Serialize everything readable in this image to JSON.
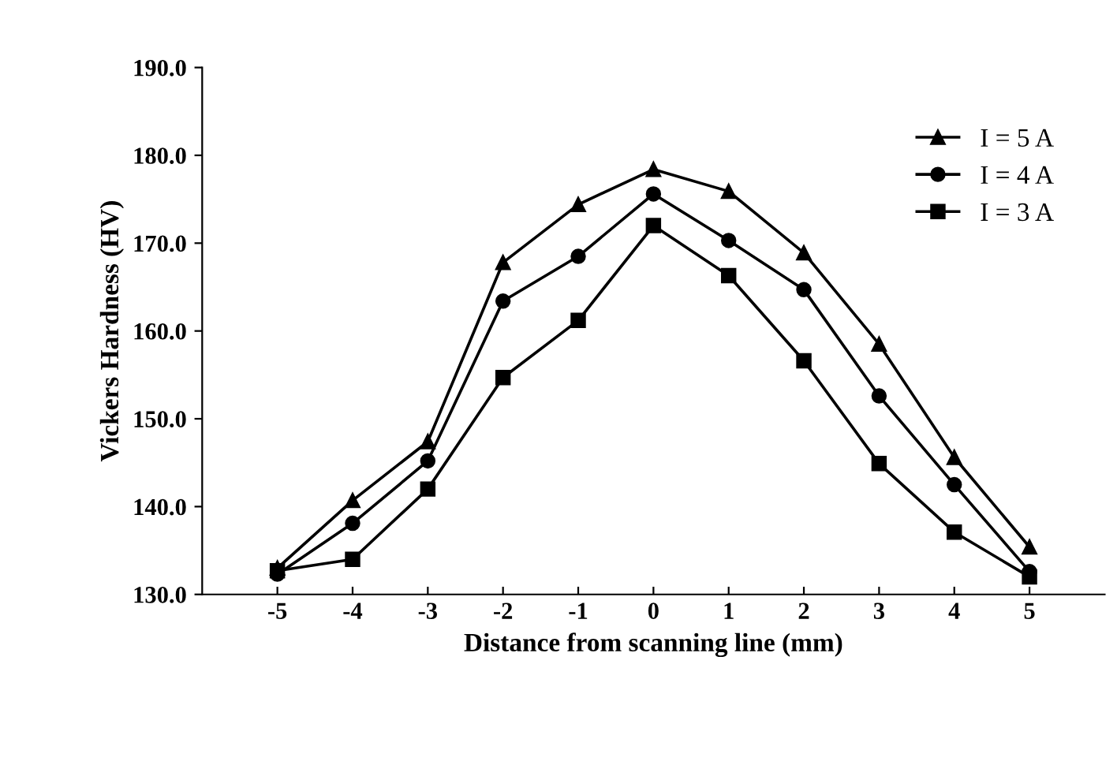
{
  "chart_data": {
    "type": "line",
    "xlabel": "Distance from scanning line (mm)",
    "ylabel": "Vickers Hardness (HV)",
    "x": [
      -5,
      -4,
      -3,
      -2,
      -1,
      0,
      1,
      2,
      3,
      4,
      5
    ],
    "series": [
      {
        "name": "I = 5 A",
        "color": "#000000",
        "marker": "triangle",
        "values": [
          133.0,
          140.7,
          147.4,
          167.8,
          174.4,
          178.4,
          175.9,
          168.9,
          158.5,
          145.6,
          135.4
        ]
      },
      {
        "name": "I = 4 A",
        "color": "#000000",
        "marker": "circle",
        "values": [
          132.3,
          138.1,
          145.2,
          163.4,
          168.5,
          175.6,
          170.3,
          164.7,
          152.6,
          142.5,
          132.6
        ]
      },
      {
        "name": "I = 3 A",
        "color": "#000000",
        "marker": "square",
        "values": [
          132.7,
          134.0,
          142.0,
          154.7,
          161.2,
          172.0,
          166.3,
          156.6,
          144.9,
          137.1,
          132.0
        ]
      }
    ],
    "xlim": [
      -6,
      6
    ],
    "xticks": [
      -5,
      -4,
      -3,
      -2,
      -1,
      0,
      1,
      2,
      3,
      4,
      5
    ],
    "ylim": [
      130,
      190
    ],
    "yticks": [
      {
        "value": 130,
        "label": "130.0"
      },
      {
        "value": 140,
        "label": "140.0"
      },
      {
        "value": 150,
        "label": "150.0"
      },
      {
        "value": 160,
        "label": "160.0"
      },
      {
        "value": 170,
        "label": "170.0"
      },
      {
        "value": 180,
        "label": "180.0"
      },
      {
        "value": 190,
        "label": "190.0"
      }
    ],
    "grid": false,
    "legend": "top right",
    "line_style": "solid"
  }
}
